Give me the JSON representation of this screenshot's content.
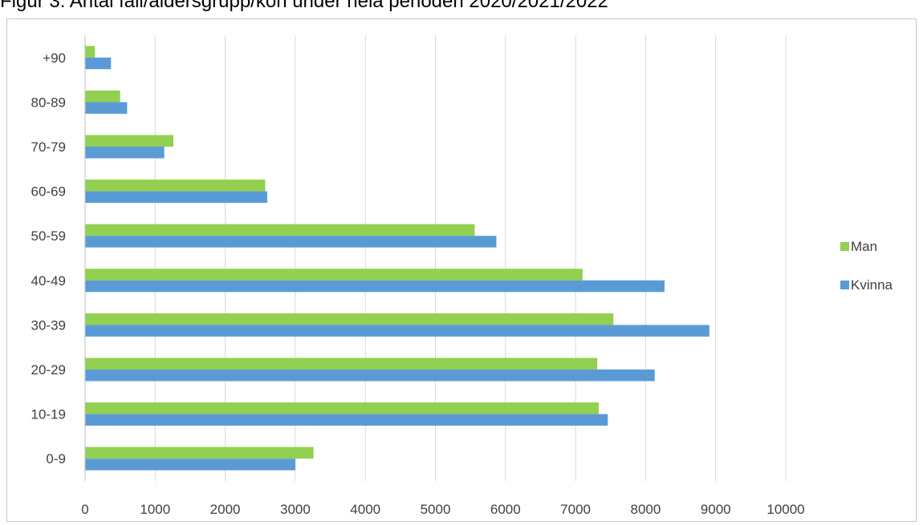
{
  "chart_data": {
    "type": "bar",
    "orientation": "horizontal",
    "title": "Figur 3. Antal fall/åldersgrupp/kön under hela perioden 2020/2021/2022",
    "xlabel": "",
    "ylabel": "",
    "categories": [
      "0-9",
      "10-19",
      "20-29",
      "30-39",
      "40-49",
      "50-59",
      "60-69",
      "70-79",
      "80-89",
      "+90"
    ],
    "series": [
      {
        "name": "Man",
        "color": "#92d050",
        "values": [
          3260,
          7330,
          7310,
          7540,
          7100,
          5560,
          2570,
          1260,
          500,
          140
        ]
      },
      {
        "name": "Kvinna",
        "color": "#5b9bd5",
        "values": [
          3000,
          7460,
          8130,
          8910,
          8270,
          5870,
          2600,
          1130,
          600,
          370
        ]
      }
    ],
    "xlim": [
      0,
      10000
    ],
    "xticks": [
      "0",
      "1000",
      "2000",
      "3000",
      "4000",
      "5000",
      "6000",
      "7000",
      "8000",
      "9000",
      "10000"
    ],
    "grid": true,
    "legend_position": "right"
  }
}
